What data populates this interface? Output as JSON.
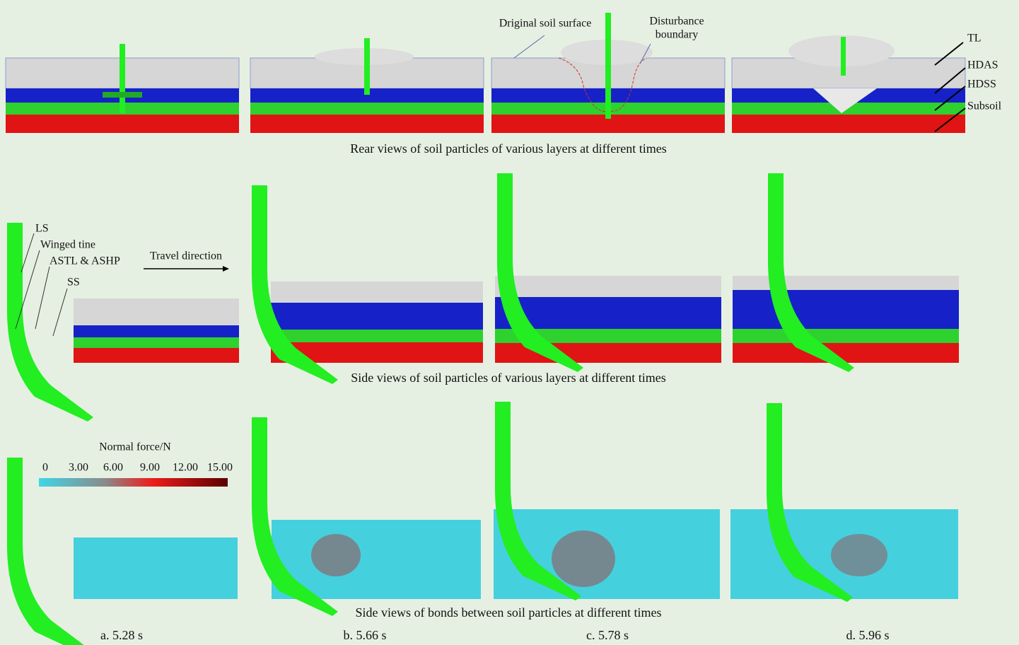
{
  "rows": [
    {
      "caption": "Rear views of soil particles of various layers at different times"
    },
    {
      "caption": "Side views of soil particles of various layers at different times"
    },
    {
      "caption": "Side views of bonds between soil particles at different times"
    }
  ],
  "columns": [
    {
      "label": "a. 5.28 s"
    },
    {
      "label": "b. 5.66 s"
    },
    {
      "label": "c. 5.78 s"
    },
    {
      "label": "d. 5.96 s"
    }
  ],
  "rear_annotations": {
    "soil_surface": "Driginal soil surface",
    "disturbance": [
      "Disturbance",
      "boundary"
    ],
    "layers": [
      "TL",
      "HDAS",
      "HDSS",
      "Subsoil"
    ]
  },
  "side_annotations": {
    "parts": [
      "LS",
      "Winged tine",
      "ASTL & ASHP",
      "SS"
    ],
    "direction": "Travel direction"
  },
  "legend": {
    "title": "Normal force/N",
    "ticks": [
      "0",
      "3.00",
      "6.00",
      "9.00",
      "12.00",
      "15.00"
    ]
  }
}
